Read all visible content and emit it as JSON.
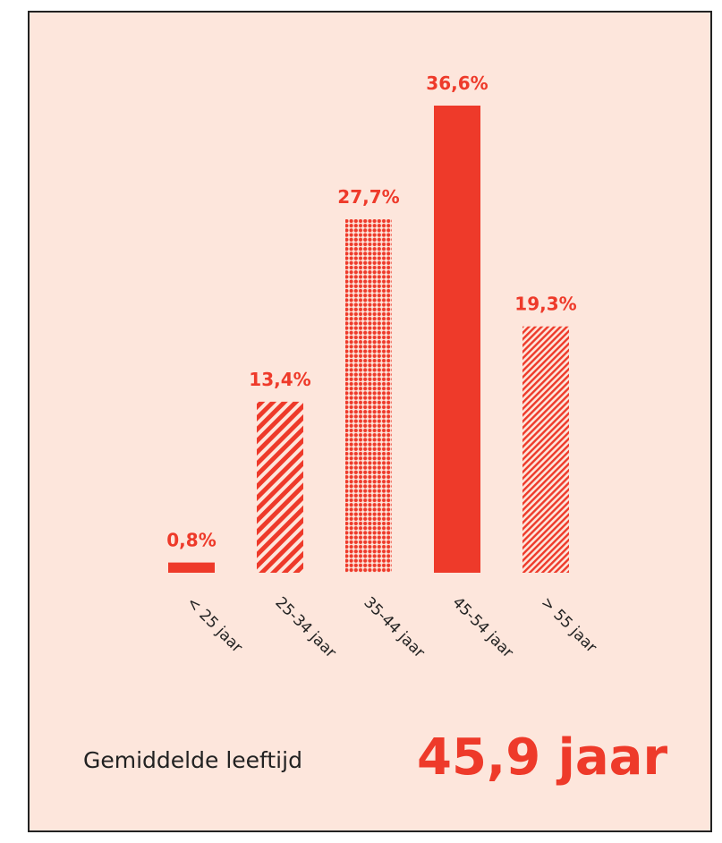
{
  "chart_data": {
    "type": "bar",
    "categories": [
      "< 25 jaar",
      "25-34 jaar",
      "35-44 jaar",
      "45-54 jaar",
      "> 55 jaar"
    ],
    "values": [
      0.8,
      13.4,
      27.7,
      36.6,
      19.3
    ],
    "value_labels": [
      "0,8%",
      "13,4%",
      "27,7%",
      "36,6%",
      "19,3%"
    ],
    "patterns": [
      "solid",
      "hatch",
      "dots",
      "solid",
      "fine-hatch"
    ],
    "color": "#ee3a2a",
    "average_label": "Gemiddelde leeftijd",
    "average_value": "45,9 jaar"
  }
}
